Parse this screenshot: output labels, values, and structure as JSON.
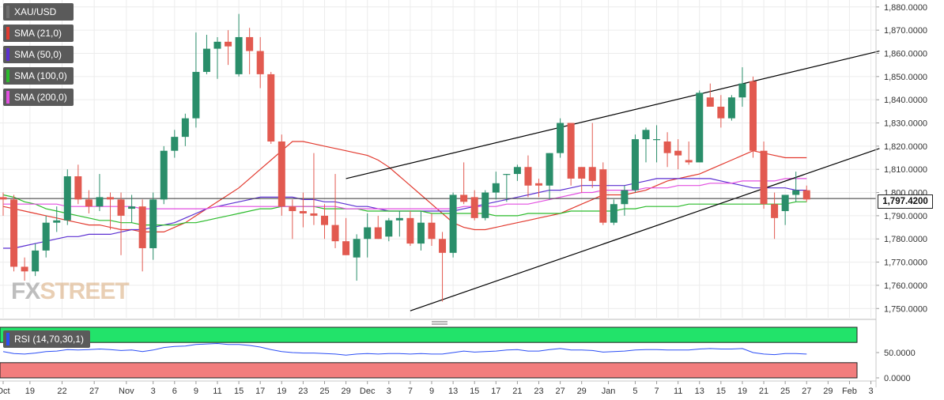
{
  "legend": {
    "symbol": "XAU/USD",
    "sma21": "SMA (21,0)",
    "sma50": "SMA (50,0)",
    "sma100": "SMA (100,0)",
    "sma200": "SMA (200,0)",
    "rsi": "RSI (14,70,30,1)"
  },
  "watermark": {
    "fx": "FX",
    "street": "STREET"
  },
  "last_price": "1,797.4200",
  "colors": {
    "up": "#2a8e6a",
    "down": "#e25a50",
    "sma21": "#e23a2f",
    "sma50": "#5b2fd1",
    "sma100": "#2bbb2b",
    "sma200": "#e24fe0",
    "rsi_line": "#2b4ef5",
    "rsi_overbought_fill": "#22e36a",
    "rsi_oversold_fill": "#f27d7d"
  },
  "chart_data": {
    "type": "candlestick",
    "y_ticks": [
      "1,880.0000",
      "1,870.0000",
      "1,860.0000",
      "1,850.0000",
      "1,840.0000",
      "1,830.0000",
      "1,820.0000",
      "1,810.0000",
      "1,800.0000",
      "1,790.0000",
      "1,780.0000",
      "1,770.0000",
      "1,760.0000",
      "1,750.0000"
    ],
    "y_tick_values": [
      1880,
      1870,
      1860,
      1850,
      1840,
      1830,
      1820,
      1810,
      1800,
      1790,
      1780,
      1770,
      1760,
      1750
    ],
    "ylim": [
      1746,
      1883
    ],
    "x_labels": [
      "Oct",
      "19",
      "22",
      "27",
      "Nov",
      "3",
      "6",
      "9",
      "11",
      "15",
      "17",
      "19",
      "23",
      "25",
      "29",
      "Dec",
      "3",
      "7",
      "9",
      "13",
      "15",
      "17",
      "21",
      "23",
      "27",
      "29",
      "Jan",
      "5",
      "7",
      "11",
      "13",
      "15",
      "19",
      "21",
      "25",
      "27",
      "29",
      "Feb",
      "3"
    ],
    "x_label_index": [
      0,
      2.5,
      5.5,
      8.5,
      11.5,
      14,
      16,
      18,
      20,
      22,
      24,
      26,
      28,
      30,
      32,
      34,
      36,
      38,
      40,
      42,
      44,
      46,
      48,
      50,
      52,
      54,
      56.5,
      59,
      61,
      63,
      65,
      67,
      69,
      71,
      73,
      75,
      77,
      79,
      81
    ],
    "candles": [
      {
        "o": 1798,
        "h": 1800,
        "l": 1790,
        "c": 1797
      },
      {
        "o": 1797,
        "h": 1799,
        "l": 1766,
        "c": 1768
      },
      {
        "o": 1768,
        "h": 1772,
        "l": 1762,
        "c": 1766
      },
      {
        "o": 1766,
        "h": 1778,
        "l": 1764,
        "c": 1775
      },
      {
        "o": 1775,
        "h": 1790,
        "l": 1772,
        "c": 1787
      },
      {
        "o": 1787,
        "h": 1794,
        "l": 1783,
        "c": 1788
      },
      {
        "o": 1788,
        "h": 1810,
        "l": 1786,
        "c": 1807
      },
      {
        "o": 1807,
        "h": 1812,
        "l": 1795,
        "c": 1797
      },
      {
        "o": 1797,
        "h": 1801,
        "l": 1791,
        "c": 1794
      },
      {
        "o": 1794,
        "h": 1808,
        "l": 1792,
        "c": 1798
      },
      {
        "o": 1798,
        "h": 1800,
        "l": 1784,
        "c": 1797
      },
      {
        "o": 1797,
        "h": 1800,
        "l": 1773,
        "c": 1790
      },
      {
        "o": 1793,
        "h": 1799,
        "l": 1787,
        "c": 1794
      },
      {
        "o": 1794,
        "h": 1797,
        "l": 1766,
        "c": 1776
      },
      {
        "o": 1776,
        "h": 1800,
        "l": 1771,
        "c": 1797
      },
      {
        "o": 1797,
        "h": 1820,
        "l": 1795,
        "c": 1818
      },
      {
        "o": 1818,
        "h": 1827,
        "l": 1815,
        "c": 1824
      },
      {
        "o": 1824,
        "h": 1834,
        "l": 1820,
        "c": 1832
      },
      {
        "o": 1832,
        "h": 1869,
        "l": 1828,
        "c": 1852
      },
      {
        "o": 1852,
        "h": 1868,
        "l": 1851,
        "c": 1862
      },
      {
        "o": 1862,
        "h": 1867,
        "l": 1849,
        "c": 1865
      },
      {
        "o": 1865,
        "h": 1870,
        "l": 1855,
        "c": 1863
      },
      {
        "o": 1851,
        "h": 1877,
        "l": 1850,
        "c": 1867
      },
      {
        "o": 1867,
        "h": 1871,
        "l": 1851,
        "c": 1861
      },
      {
        "o": 1861,
        "h": 1867,
        "l": 1845,
        "c": 1851
      },
      {
        "o": 1851,
        "h": 1852,
        "l": 1821,
        "c": 1822
      },
      {
        "o": 1822,
        "h": 1825,
        "l": 1790,
        "c": 1794
      },
      {
        "o": 1794,
        "h": 1797,
        "l": 1780,
        "c": 1792
      },
      {
        "o": 1792,
        "h": 1800,
        "l": 1785,
        "c": 1791
      },
      {
        "o": 1791,
        "h": 1817,
        "l": 1786,
        "c": 1790
      },
      {
        "o": 1790,
        "h": 1795,
        "l": 1780,
        "c": 1786
      },
      {
        "o": 1786,
        "h": 1808,
        "l": 1776,
        "c": 1779
      },
      {
        "o": 1779,
        "h": 1789,
        "l": 1773,
        "c": 1773
      },
      {
        "o": 1772,
        "h": 1782,
        "l": 1762,
        "c": 1780
      },
      {
        "o": 1780,
        "h": 1791,
        "l": 1772,
        "c": 1785
      },
      {
        "o": 1785,
        "h": 1790,
        "l": 1780,
        "c": 1780
      },
      {
        "o": 1781,
        "h": 1789,
        "l": 1779,
        "c": 1788
      },
      {
        "o": 1788,
        "h": 1792,
        "l": 1781,
        "c": 1789
      },
      {
        "o": 1789,
        "h": 1792,
        "l": 1777,
        "c": 1778
      },
      {
        "o": 1778,
        "h": 1792,
        "l": 1775,
        "c": 1787
      },
      {
        "o": 1787,
        "h": 1791,
        "l": 1777,
        "c": 1780
      },
      {
        "o": 1780,
        "h": 1783,
        "l": 1753,
        "c": 1774
      },
      {
        "o": 1774,
        "h": 1800,
        "l": 1772,
        "c": 1799
      },
      {
        "o": 1799,
        "h": 1813,
        "l": 1795,
        "c": 1796
      },
      {
        "o": 1798,
        "h": 1801,
        "l": 1788,
        "c": 1789
      },
      {
        "o": 1789,
        "h": 1801,
        "l": 1788,
        "c": 1800
      },
      {
        "o": 1800,
        "h": 1809,
        "l": 1797,
        "c": 1804
      },
      {
        "o": 1808,
        "h": 1808,
        "l": 1796,
        "c": 1808
      },
      {
        "o": 1808,
        "h": 1812,
        "l": 1805,
        "c": 1811
      },
      {
        "o": 1811,
        "h": 1816,
        "l": 1798,
        "c": 1803
      },
      {
        "o": 1804,
        "h": 1806,
        "l": 1798,
        "c": 1803
      },
      {
        "o": 1803,
        "h": 1817,
        "l": 1797,
        "c": 1817
      },
      {
        "o": 1817,
        "h": 1832,
        "l": 1815,
        "c": 1830
      },
      {
        "o": 1830,
        "h": 1830,
        "l": 1803,
        "c": 1806
      },
      {
        "o": 1811,
        "h": 1811,
        "l": 1800,
        "c": 1806
      },
      {
        "o": 1811,
        "h": 1830,
        "l": 1802,
        "c": 1805
      },
      {
        "o": 1810,
        "h": 1813,
        "l": 1786,
        "c": 1787
      },
      {
        "o": 1787,
        "h": 1797,
        "l": 1786,
        "c": 1795
      },
      {
        "o": 1795,
        "h": 1803,
        "l": 1790,
        "c": 1801
      },
      {
        "o": 1801,
        "h": 1825,
        "l": 1800,
        "c": 1823
      },
      {
        "o": 1823,
        "h": 1828,
        "l": 1813,
        "c": 1827
      },
      {
        "o": 1823,
        "h": 1829,
        "l": 1813,
        "c": 1823
      },
      {
        "o": 1822,
        "h": 1826,
        "l": 1811,
        "c": 1817
      },
      {
        "o": 1818,
        "h": 1823,
        "l": 1810,
        "c": 1816
      },
      {
        "o": 1814,
        "h": 1822,
        "l": 1812,
        "c": 1813
      },
      {
        "o": 1813,
        "h": 1844,
        "l": 1813,
        "c": 1843
      },
      {
        "o": 1841,
        "h": 1847,
        "l": 1838,
        "c": 1837
      },
      {
        "o": 1837,
        "h": 1842,
        "l": 1828,
        "c": 1832
      },
      {
        "o": 1832,
        "h": 1842,
        "l": 1831,
        "c": 1841
      },
      {
        "o": 1841,
        "h": 1854,
        "l": 1837,
        "c": 1847
      },
      {
        "o": 1848,
        "h": 1850,
        "l": 1815,
        "c": 1818
      },
      {
        "o": 1818,
        "h": 1822,
        "l": 1793,
        "c": 1795
      },
      {
        "o": 1795,
        "h": 1800,
        "l": 1780,
        "c": 1789
      },
      {
        "o": 1792,
        "h": 1799,
        "l": 1786,
        "c": 1799
      },
      {
        "o": 1799,
        "h": 1809,
        "l": 1796,
        "c": 1801
      },
      {
        "o": 1801,
        "h": 1803,
        "l": 1796,
        "c": 1797
      }
    ],
    "sma21": [
      1794,
      1793,
      1792,
      1791,
      1790,
      1789,
      1788,
      1787,
      1786,
      1786,
      1785,
      1784,
      1784,
      1783,
      1783,
      1783,
      1785,
      1787,
      1790,
      1793,
      1796,
      1799,
      1802,
      1806,
      1810,
      1814,
      1818,
      1822,
      1822,
      1821,
      1820,
      1819,
      1818,
      1817,
      1816,
      1814,
      1811,
      1807,
      1803,
      1799,
      1795,
      1791,
      1787,
      1785,
      1784,
      1784,
      1785,
      1786,
      1787,
      1788,
      1789,
      1790,
      1791,
      1793,
      1795,
      1797,
      1799,
      1799,
      1799,
      1800,
      1801,
      1803,
      1805,
      1806,
      1807,
      1808,
      1810,
      1812,
      1814,
      1816,
      1818,
      1817,
      1816,
      1815,
      1815,
      1815
    ],
    "sma50": [
      1776,
      1776,
      1777,
      1778,
      1779,
      1780,
      1781,
      1781,
      1782,
      1782,
      1782,
      1783,
      1784,
      1784,
      1785,
      1786,
      1787,
      1789,
      1791,
      1793,
      1794,
      1795,
      1796,
      1797,
      1798,
      1798,
      1798,
      1798,
      1797,
      1797,
      1796,
      1796,
      1795,
      1794,
      1794,
      1793,
      1792,
      1792,
      1792,
      1792,
      1792,
      1792,
      1792,
      1793,
      1794,
      1795,
      1796,
      1797,
      1798,
      1799,
      1800,
      1801,
      1801,
      1802,
      1803,
      1803,
      1803,
      1803,
      1803,
      1804,
      1805,
      1806,
      1806,
      1806,
      1806,
      1806,
      1806,
      1805,
      1804,
      1803,
      1802,
      1802,
      1802,
      1802,
      1801,
      1801
    ],
    "sma100": [
      1799,
      1798,
      1796,
      1795,
      1793,
      1792,
      1791,
      1790,
      1789,
      1788,
      1788,
      1787,
      1787,
      1786,
      1786,
      1786,
      1786,
      1787,
      1787,
      1788,
      1789,
      1790,
      1791,
      1792,
      1793,
      1793,
      1794,
      1794,
      1794,
      1794,
      1793,
      1793,
      1793,
      1793,
      1792,
      1792,
      1792,
      1792,
      1792,
      1792,
      1791,
      1791,
      1791,
      1791,
      1791,
      1791,
      1790,
      1790,
      1790,
      1791,
      1791,
      1791,
      1791,
      1792,
      1792,
      1792,
      1792,
      1792,
      1793,
      1793,
      1794,
      1794,
      1794,
      1794,
      1795,
      1795,
      1795,
      1795,
      1795,
      1795,
      1795,
      1795,
      1795,
      1795,
      1796,
      1796
    ],
    "sma200": [
      1795,
      1795,
      1795,
      1795,
      1795,
      1795,
      1794,
      1794,
      1794,
      1794,
      1794,
      1794,
      1794,
      1793,
      1793,
      1793,
      1793,
      1793,
      1793,
      1793,
      1794,
      1794,
      1794,
      1794,
      1794,
      1794,
      1794,
      1794,
      1794,
      1794,
      1794,
      1794,
      1793,
      1793,
      1793,
      1793,
      1793,
      1793,
      1793,
      1793,
      1793,
      1793,
      1793,
      1794,
      1794,
      1794,
      1794,
      1795,
      1795,
      1795,
      1796,
      1797,
      1798,
      1799,
      1800,
      1800,
      1801,
      1801,
      1801,
      1801,
      1802,
      1802,
      1802,
      1803,
      1803,
      1803,
      1804,
      1804,
      1804,
      1805,
      1805,
      1805,
      1805,
      1806,
      1806,
      1806
    ],
    "trendlines": [
      {
        "x1": 32,
        "y1": 1806,
        "x2": 81.8,
        "y2": 1861
      },
      {
        "x1": 38,
        "y1": 1749,
        "x2": 81.8,
        "y2": 1819
      }
    ],
    "horizontal_line": 1797.42,
    "rsi": {
      "levels": [
        70,
        30
      ],
      "y_ticks": [
        "50.0000",
        "0.0000"
      ],
      "y_tick_values": [
        50,
        0
      ],
      "ylim": [
        0,
        100
      ],
      "values": [
        52,
        48,
        47,
        49,
        52,
        53,
        56,
        55,
        56,
        57,
        56,
        54,
        55,
        52,
        55,
        60,
        62,
        63,
        66,
        67,
        68,
        66,
        66,
        64,
        61,
        56,
        52,
        50,
        49,
        49,
        48,
        47,
        45,
        47,
        48,
        47,
        48,
        48,
        47,
        48,
        47,
        47,
        50,
        53,
        51,
        52,
        53,
        55,
        56,
        53,
        53,
        56,
        58,
        55,
        55,
        54,
        51,
        52,
        53,
        55,
        56,
        56,
        55,
        55,
        55,
        57,
        58,
        57,
        57,
        58,
        50,
        47,
        46,
        48,
        48,
        47
      ]
    }
  }
}
